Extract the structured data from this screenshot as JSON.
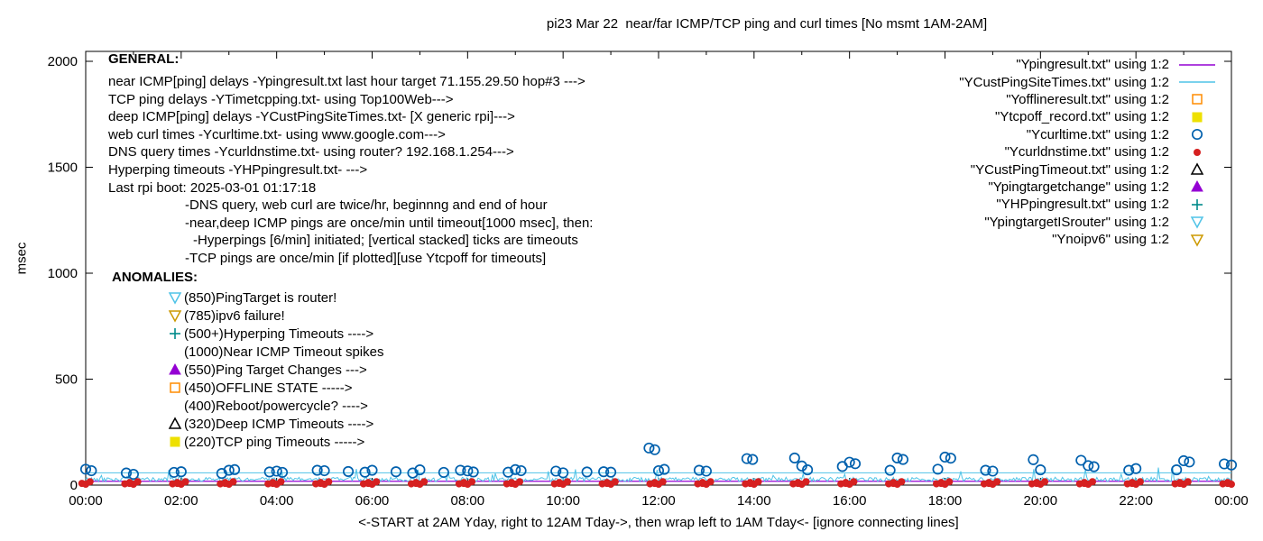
{
  "general": {
    "heading": "GENERAL:",
    "lines": [
      {
        "indent": 0,
        "text": "near ICMP[ping] delays -Ypingresult.txt last hour target 71.155.29.50 hop#3 --->"
      },
      {
        "indent": 0,
        "text": "TCP ping delays -YTimetcpping.txt- using Top100Web--->"
      },
      {
        "indent": 0,
        "text": "deep ICMP[ping] delays -YCustPingSiteTimes.txt- [X generic rpi]--->"
      },
      {
        "indent": 0,
        "text": "web curl times -Ycurltime.txt- using www.google.com--->"
      },
      {
        "indent": 0,
        "text": "DNS query times -Ycurldnstime.txt- using router? 192.168.1.254--->"
      },
      {
        "indent": 0,
        "text": "Hyperping timeouts -YHPpingresult.txt- --->"
      },
      {
        "indent": 0,
        "text": "Last rpi boot: 2025-03-01 01:17:18"
      },
      {
        "indent": 1,
        "text": "-DNS query, web curl are twice/hr, beginnng and end of hour"
      },
      {
        "indent": 1,
        "text": "-near,deep ICMP pings are once/min until timeout[1000 msec], then:"
      },
      {
        "indent": 2,
        "text": "-Hyperpings [6/min] initiated; [vertical stacked] ticks are timeouts"
      },
      {
        "indent": 1,
        "text": "-TCP pings are once/min [if plotted][use Ytcpoff for timeouts]"
      }
    ]
  },
  "anomalies": {
    "heading": "ANOMALIES:",
    "lines": [
      {
        "marker": "open-triangle-down",
        "color": "#4fc3e7",
        "text": "(850)PingTarget is router!"
      },
      {
        "marker": "open-triangle-down",
        "color": "#cc9900",
        "text": "(785)ipv6 failure!"
      },
      {
        "marker": "plus",
        "color": "#008b8b",
        "text": "(500+)Hyperping Timeouts ---->"
      },
      {
        "marker": "none",
        "color": "#000000",
        "text": "(1000)Near ICMP Timeout spikes"
      },
      {
        "marker": "filled-triangle-up",
        "color": "#9400d3",
        "text": "(550)Ping Target Changes --->"
      },
      {
        "marker": "open-square",
        "color": "#ff8c00",
        "text": "(450)OFFLINE STATE ----->"
      },
      {
        "marker": "none",
        "color": "#000000",
        "text": "(400)Reboot/powercycle? ---->"
      },
      {
        "marker": "open-triangle-up",
        "color": "#000000",
        "text": "(320)Deep ICMP Timeouts ---->"
      },
      {
        "marker": "filled-square",
        "color": "#eee000",
        "text": "(220)TCP ping Timeouts ----->"
      }
    ]
  },
  "legend": {
    "items": [
      {
        "label": "\"Ypingresult.txt\" using 1:2",
        "marker": "line",
        "color": "#9400d3"
      },
      {
        "label": "\"YCustPingSiteTimes.txt\" using 1:2",
        "marker": "line",
        "color": "#4fc3e7"
      },
      {
        "label": "\"Yofflineresult.txt\" using 1:2",
        "marker": "open-square",
        "color": "#ff8c00"
      },
      {
        "label": "\"Ytcpoff_record.txt\" using 1:2",
        "marker": "filled-square",
        "color": "#eee000"
      },
      {
        "label": "\"Ycurltime.txt\" using 1:2",
        "marker": "open-circle",
        "color": "#0060ad"
      },
      {
        "label": "\"Ycurldnstime.txt\" using 1:2",
        "marker": "filled-circle",
        "color": "#d62020"
      },
      {
        "label": "\"YCustPingTimeout.txt\" using 1:2",
        "marker": "open-triangle-up",
        "color": "#000000"
      },
      {
        "label": "\"Ypingtargetchange\" using 1:2",
        "marker": "filled-triangle-up",
        "color": "#9400d3"
      },
      {
        "label": "\"YHPpingresult.txt\" using 1:2",
        "marker": "plus",
        "color": "#008b8b"
      },
      {
        "label": "\"YpingtargetISrouter\" using 1:2",
        "marker": "open-triangle-down",
        "color": "#4fc3e7"
      },
      {
        "label": "\"Ynoipv6\" using 1:2",
        "marker": "open-triangle-down",
        "color": "#cc9900"
      }
    ]
  },
  "chart_data": {
    "type": "line",
    "title": "pi23 Mar 22  near/far ICMP/TCP ping and curl times [No msmt 1AM-2AM]",
    "xlabel": "<-START at 2AM Yday, right to 12AM Tday->, then wrap left to 1AM Tday<- [ignore connecting lines]",
    "ylabel": "msec",
    "ylim": [
      0,
      2000
    ],
    "y_ticks": [
      0,
      500,
      1000,
      1500,
      2000
    ],
    "xlim_hours": [
      0,
      24
    ],
    "x_tick_labels": [
      "00:00",
      "02:00",
      "04:00",
      "06:00",
      "08:00",
      "10:00",
      "12:00",
      "14:00",
      "16:00",
      "18:00",
      "20:00",
      "22:00",
      "00:00"
    ],
    "grid": false,
    "legend_position": "top-right",
    "series": [
      {
        "name": "Ypingresult.txt",
        "plot": "hline",
        "value_ms": 18,
        "color": "#9400d3"
      },
      {
        "name": "YCustPingSiteTimes.txt",
        "plot": "noisy-line",
        "base_ms": 27,
        "noise_ms": 20,
        "spike_max_ms": 90,
        "flat_component_ms": 58,
        "color": "#4fc3e7"
      },
      {
        "name": "Yofflineresult.txt",
        "plot": "points",
        "marker": "open-square",
        "color": "#ff8c00",
        "points": []
      },
      {
        "name": "Ytcpoff_record.txt",
        "plot": "points",
        "marker": "filled-square",
        "color": "#eee000",
        "points": []
      },
      {
        "name": "Ycurltime.txt",
        "plot": "points",
        "marker": "open-circle",
        "color": "#0060ad",
        "points": [
          [
            0,
            75
          ],
          [
            0.12,
            68
          ],
          [
            0.85,
            57
          ],
          [
            1,
            51
          ],
          [
            1.85,
            60
          ],
          [
            2,
            63
          ],
          [
            2.85,
            55
          ],
          [
            3,
            70
          ],
          [
            3.12,
            73
          ],
          [
            3.85,
            62
          ],
          [
            4,
            66
          ],
          [
            4.12,
            60
          ],
          [
            4.85,
            70
          ],
          [
            5,
            68
          ],
          [
            5.5,
            64
          ],
          [
            5.85,
            61
          ],
          [
            6,
            70
          ],
          [
            6.5,
            63
          ],
          [
            6.85,
            57
          ],
          [
            7,
            72
          ],
          [
            7.5,
            60
          ],
          [
            7.85,
            70
          ],
          [
            8,
            67
          ],
          [
            8.12,
            62
          ],
          [
            8.85,
            61
          ],
          [
            9,
            73
          ],
          [
            9.12,
            68
          ],
          [
            9.85,
            66
          ],
          [
            10,
            58
          ],
          [
            10.5,
            62
          ],
          [
            10.85,
            63
          ],
          [
            11,
            61
          ],
          [
            11.8,
            175
          ],
          [
            11.92,
            167
          ],
          [
            12,
            68
          ],
          [
            12.12,
            74
          ],
          [
            12.85,
            70
          ],
          [
            13,
            66
          ],
          [
            13.85,
            125
          ],
          [
            13.97,
            121
          ],
          [
            14.85,
            128
          ],
          [
            15,
            90
          ],
          [
            15.12,
            72
          ],
          [
            15.85,
            88
          ],
          [
            16,
            108
          ],
          [
            16.12,
            101
          ],
          [
            16.85,
            70
          ],
          [
            17,
            128
          ],
          [
            17.12,
            121
          ],
          [
            17.85,
            75
          ],
          [
            18,
            132
          ],
          [
            18.12,
            127
          ],
          [
            18.85,
            70
          ],
          [
            19,
            66
          ],
          [
            19.85,
            120
          ],
          [
            20,
            72
          ],
          [
            20.85,
            117
          ],
          [
            21,
            92
          ],
          [
            21.12,
            87
          ],
          [
            21.85,
            70
          ],
          [
            22,
            78
          ],
          [
            22.85,
            72
          ],
          [
            23,
            115
          ],
          [
            23.12,
            109
          ],
          [
            23.85,
            100
          ],
          [
            24,
            95
          ]
        ]
      },
      {
        "name": "Ycurldnstime.txt",
        "plot": "clusters",
        "marker": "filled-circle",
        "color": "#d62020",
        "cluster_hours": [
          0,
          1,
          2,
          3,
          4,
          5,
          6,
          7,
          8,
          9,
          10,
          11,
          12,
          13,
          14,
          15,
          16,
          17,
          18,
          19,
          20,
          21,
          22,
          23,
          24
        ],
        "cluster_offsets_h": [
          -0.08,
          0,
          0.09,
          0.82,
          0.92
        ],
        "values_ms_cycle": [
          8,
          4,
          16,
          6,
          12
        ]
      },
      {
        "name": "YCustPingTimeout.txt",
        "plot": "points",
        "marker": "open-triangle-up",
        "color": "#000000",
        "points": []
      },
      {
        "name": "Ypingtargetchange",
        "plot": "points",
        "marker": "filled-triangle-up",
        "color": "#9400d3",
        "points": []
      },
      {
        "name": "YHPpingresult.txt",
        "plot": "points",
        "marker": "plus",
        "color": "#008b8b",
        "points": []
      },
      {
        "name": "YpingtargetISrouter",
        "plot": "points",
        "marker": "open-triangle-down",
        "color": "#4fc3e7",
        "points": []
      },
      {
        "name": "Ynoipv6",
        "plot": "points",
        "marker": "open-triangle-down",
        "color": "#cc9900",
        "points": []
      }
    ]
  }
}
